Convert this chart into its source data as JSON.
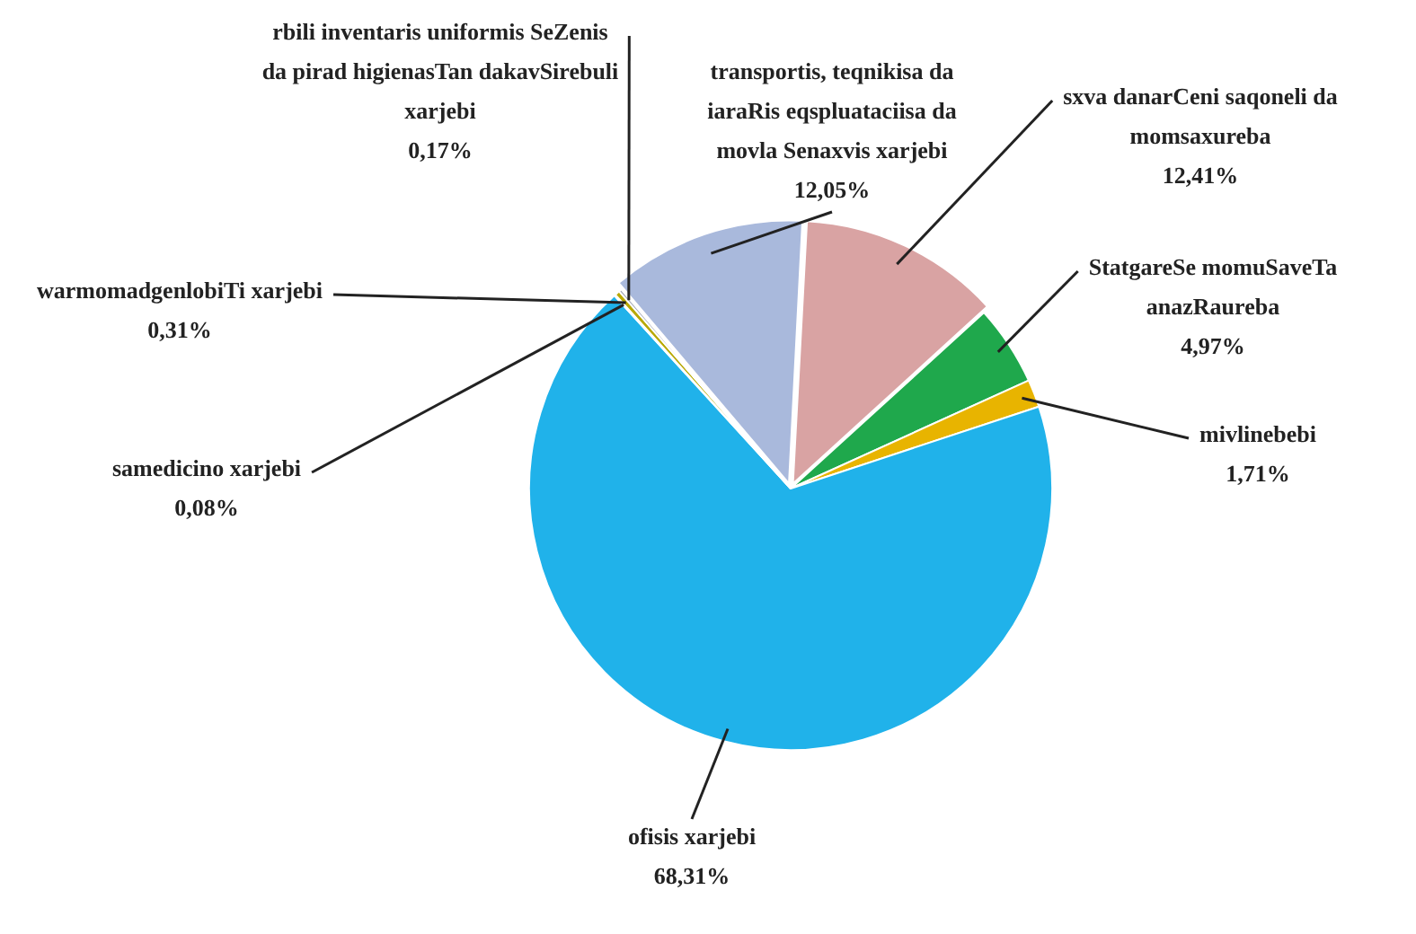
{
  "chart_data": {
    "type": "pie",
    "categories": [
      "sxva danarCeni saqoneli da momsaxureba",
      "StatgareSe momuSaveTa anazRaureba",
      "mivlinebebi",
      "ofisis xarjebi",
      "samedicino xarjebi",
      "warmomadgenlobiTi xarjebi",
      "rbili inventaris uniformis SeZenis da pirad higienasTan dakavSirebuli xarjebi",
      "transportis, teqnikisa da iaraRis eqspluataciisa da movla Senaxvis xarjebi"
    ],
    "values": [
      12.41,
      4.97,
      1.71,
      68.31,
      0.08,
      0.31,
      0.17,
      12.05
    ],
    "value_labels": [
      "12,41%",
      "4,97%",
      "1,71%",
      "68,31%",
      "0,08%",
      "0,31%",
      "0,17%",
      "12,05%"
    ],
    "colors": [
      "#d9a3a3",
      "#1fa84c",
      "#e8b400",
      "#20b2ea",
      "#a89a10",
      "#b8a800",
      "#9aa0b0",
      "#a9b9dc"
    ],
    "legend": false
  }
}
